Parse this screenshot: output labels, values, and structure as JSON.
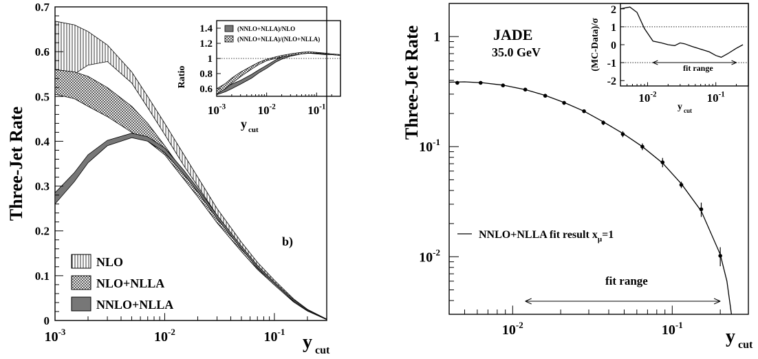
{
  "chart_data": [
    {
      "type": "area",
      "title": "",
      "panel_label": "b)",
      "xlabel_main": "y",
      "xlabel_sub": "cut",
      "ylabel": "Three-Jet Rate",
      "xscale": "log",
      "xlim": [
        0.001,
        0.3
      ],
      "ylim": [
        0,
        0.7
      ],
      "x_ticks": [
        {
          "value": 0.001,
          "base": "10",
          "exp": "-3"
        },
        {
          "value": 0.01,
          "base": "10",
          "exp": "-2"
        },
        {
          "value": 0.1,
          "base": "10",
          "exp": "-1"
        }
      ],
      "y_ticks": [
        "0",
        "0.1",
        "0.2",
        "0.3",
        "0.4",
        "0.5",
        "0.6",
        "0.7"
      ],
      "legend_position": "bottom-left",
      "x": [
        0.001,
        0.0015,
        0.002,
        0.003,
        0.005,
        0.007,
        0.01,
        0.015,
        0.02,
        0.03,
        0.05,
        0.07,
        0.1,
        0.15,
        0.2,
        0.3
      ],
      "series": [
        {
          "name": "NLO",
          "hatch": "vertical",
          "upper": [
            0.668,
            0.66,
            0.645,
            0.615,
            0.555,
            0.5,
            0.44,
            0.37,
            0.32,
            0.25,
            0.175,
            0.13,
            0.09,
            0.048,
            0.025,
            0.003
          ],
          "lower": [
            0.51,
            0.55,
            0.57,
            0.578,
            0.53,
            0.475,
            0.415,
            0.345,
            0.3,
            0.235,
            0.165,
            0.123,
            0.085,
            0.045,
            0.023,
            0.002
          ]
        },
        {
          "name": "NLO+NLLA",
          "hatch": "crosshatch",
          "upper": [
            0.56,
            0.555,
            0.545,
            0.52,
            0.478,
            0.44,
            0.39,
            0.33,
            0.29,
            0.23,
            0.162,
            0.12,
            0.083,
            0.044,
            0.023,
            0.002
          ],
          "lower": [
            0.505,
            0.495,
            0.478,
            0.455,
            0.42,
            0.4,
            0.37,
            0.315,
            0.276,
            0.218,
            0.154,
            0.114,
            0.079,
            0.041,
            0.021,
            0.002
          ]
        },
        {
          "name": "NNLO+NLLA",
          "hatch": "solid-gray",
          "upper": [
            0.285,
            0.33,
            0.37,
            0.402,
            0.418,
            0.41,
            0.385,
            0.335,
            0.295,
            0.235,
            0.166,
            0.123,
            0.086,
            0.046,
            0.024,
            0.003
          ],
          "lower": [
            0.26,
            0.31,
            0.352,
            0.39,
            0.408,
            0.4,
            0.375,
            0.326,
            0.287,
            0.228,
            0.16,
            0.118,
            0.082,
            0.043,
            0.022,
            0.002
          ]
        }
      ],
      "inset": {
        "ylabel": "Ratio",
        "xlabel_main": "y",
        "xlabel_sub": "cut",
        "xscale": "log",
        "xlim": [
          0.001,
          0.3
        ],
        "ylim": [
          0.5,
          1.5
        ],
        "y_ticks": [
          "0.6",
          "0.8",
          "1",
          "1.2",
          "1.4"
        ],
        "reference_line": 1,
        "x_ticks": [
          {
            "value": 0.001,
            "base": "10",
            "exp": "-3"
          },
          {
            "value": 0.01,
            "base": "10",
            "exp": "-2"
          },
          {
            "value": 0.1,
            "base": "10",
            "exp": "-1"
          }
        ],
        "x": [
          0.001,
          0.0015,
          0.002,
          0.003,
          0.005,
          0.007,
          0.01,
          0.015,
          0.02,
          0.03,
          0.05,
          0.07,
          0.1,
          0.15,
          0.2,
          0.3
        ],
        "series": [
          {
            "name": "(NNLO+NLLA)/NLO",
            "hatch": "solid-gray",
            "upper": [
              0.57,
              0.62,
              0.66,
              0.71,
              0.79,
              0.85,
              0.91,
              0.98,
              1.02,
              1.06,
              1.08,
              1.08,
              1.07,
              1.06,
              1.06,
              1.05
            ],
            "lower": [
              0.52,
              0.56,
              0.6,
              0.66,
              0.74,
              0.81,
              0.87,
              0.95,
              0.99,
              1.03,
              1.06,
              1.07,
              1.06,
              1.05,
              1.05,
              1.04
            ]
          },
          {
            "name": "(NNLO+NLLA)/(NLO+NLLA)",
            "hatch": "crosshatch",
            "upper": [
              0.6,
              0.67,
              0.74,
              0.82,
              0.9,
              0.95,
              0.99,
              1.02,
              1.04,
              1.06,
              1.08,
              1.09,
              1.08,
              1.07,
              1.06,
              1.05
            ],
            "lower": [
              0.53,
              0.6,
              0.67,
              0.76,
              0.86,
              0.92,
              0.97,
              1.0,
              1.02,
              1.04,
              1.06,
              1.07,
              1.07,
              1.06,
              1.05,
              1.04
            ]
          }
        ]
      }
    },
    {
      "type": "scatter",
      "title": "JADE",
      "subtitle": "35.0 GeV",
      "xlabel_main": "y",
      "xlabel_sub": "cut",
      "ylabel": "Three-Jet Rate",
      "xscale": "log",
      "yscale": "log",
      "xlim": [
        0.004,
        0.3
      ],
      "ylim": [
        0.003,
        2.0
      ],
      "x_ticks": [
        {
          "value": 0.01,
          "base": "10",
          "exp": "-2"
        },
        {
          "value": 0.1,
          "base": "10",
          "exp": "-1"
        }
      ],
      "y_ticks": [
        {
          "value": 1,
          "base": "1",
          "exp": ""
        },
        {
          "value": 0.1,
          "base": "10",
          "exp": "-1"
        },
        {
          "value": 0.01,
          "base": "10",
          "exp": "-2"
        }
      ],
      "legend_text": "NNLO+NLLA fit result x",
      "legend_sub": "μ",
      "legend_tail": "=1",
      "fit_range_label": "fit range",
      "fit_range": [
        0.012,
        0.2
      ],
      "points": [
        {
          "x": 0.0045,
          "y": 0.38,
          "err": 0.01
        },
        {
          "x": 0.0063,
          "y": 0.38,
          "err": 0.01
        },
        {
          "x": 0.0087,
          "y": 0.36,
          "err": 0.01
        },
        {
          "x": 0.012,
          "y": 0.33,
          "err": 0.01
        },
        {
          "x": 0.016,
          "y": 0.29,
          "err": 0.01
        },
        {
          "x": 0.021,
          "y": 0.25,
          "err": 0.01
        },
        {
          "x": 0.028,
          "y": 0.21,
          "err": 0.008
        },
        {
          "x": 0.037,
          "y": 0.165,
          "err": 0.008
        },
        {
          "x": 0.049,
          "y": 0.13,
          "err": 0.008
        },
        {
          "x": 0.065,
          "y": 0.1,
          "err": 0.007
        },
        {
          "x": 0.087,
          "y": 0.072,
          "err": 0.007
        },
        {
          "x": 0.114,
          "y": 0.045,
          "err": 0.003
        },
        {
          "x": 0.152,
          "y": 0.027,
          "err": 0.004
        },
        {
          "x": 0.2,
          "y": 0.0102,
          "err": 0.002
        }
      ],
      "fit_curve": {
        "x": [
          0.004,
          0.005,
          0.0065,
          0.0087,
          0.012,
          0.016,
          0.021,
          0.028,
          0.037,
          0.049,
          0.065,
          0.087,
          0.114,
          0.152,
          0.2,
          0.22,
          0.235
        ],
        "y": [
          0.385,
          0.388,
          0.38,
          0.362,
          0.33,
          0.292,
          0.252,
          0.21,
          0.168,
          0.132,
          0.1,
          0.071,
          0.046,
          0.026,
          0.0105,
          0.006,
          0.003
        ]
      },
      "inset": {
        "ylabel": "(MC-Data)/σ",
        "xlabel_main": "y",
        "xlabel_sub": "cut",
        "xscale": "log",
        "xlim": [
          0.004,
          0.3
        ],
        "ylim": [
          -2.3,
          2.3
        ],
        "y_ticks": [
          "2",
          "1",
          "0",
          "-1",
          "-2"
        ],
        "reference_lines": [
          1,
          -1
        ],
        "fit_range_label": "fit range",
        "fit_range": [
          0.012,
          0.2
        ],
        "x_ticks": [
          {
            "value": 0.01,
            "base": "10",
            "exp": "-2"
          },
          {
            "value": 0.1,
            "base": "10",
            "exp": "-1"
          }
        ],
        "x": [
          0.004,
          0.0055,
          0.007,
          0.009,
          0.012,
          0.016,
          0.02,
          0.025,
          0.03,
          0.035,
          0.045,
          0.06,
          0.08,
          0.1,
          0.12,
          0.15,
          0.2,
          0.25
        ],
        "y": [
          2.0,
          2.1,
          1.8,
          0.9,
          0.2,
          0.1,
          0.0,
          -0.05,
          0.1,
          0.05,
          -0.1,
          -0.25,
          -0.4,
          -0.6,
          -0.7,
          -0.5,
          -0.2,
          0.0
        ]
      }
    }
  ]
}
